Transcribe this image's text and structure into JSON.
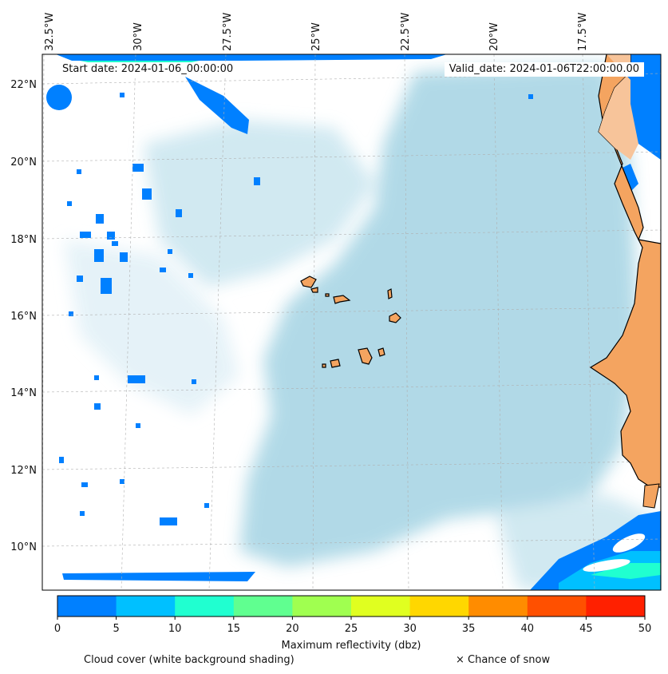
{
  "header": {
    "start_date": "Start date: 2024-01-06_00:00:00",
    "valid_date": "Valid_date: 2024-01-06T22:00:00.00"
  },
  "longitude_labels": [
    "32.5°W",
    "30°W",
    "27.5°W",
    "25°W",
    "22.5°W",
    "20°W",
    "17.5°W"
  ],
  "latitude_labels": [
    "22°N",
    "20°N",
    "18°N",
    "16°N",
    "14°N",
    "12°N",
    "10°N"
  ],
  "colorbar": {
    "title": "Maximum reflectivity (dbz)",
    "ticks": [
      "0",
      "5",
      "10",
      "15",
      "20",
      "25",
      "30",
      "35",
      "40",
      "45",
      "50"
    ],
    "colors": [
      "#0080ff",
      "#00c0ff",
      "#20ffd0",
      "#60ff90",
      "#a0ff50",
      "#e0ff20",
      "#ffd700",
      "#ff8c00",
      "#ff5000",
      "#ff2000"
    ]
  },
  "footer": {
    "cloud_cover": "Cloud cover (white background shading)",
    "snow": "× Chance of snow"
  },
  "colors": {
    "land": "#f4a460",
    "land_light": "#f7c49a",
    "cloud_haze": "#add8e6",
    "reflectivity_low": "#0080ff",
    "reflectivity_mid": "#00c0ff",
    "reflectivity_cyan": "#20ffd0"
  }
}
